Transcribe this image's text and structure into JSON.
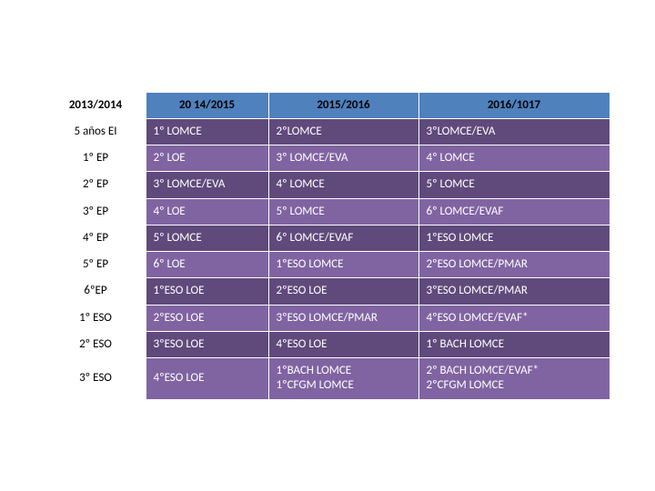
{
  "table": {
    "header_bg": "#4f81bd",
    "row_alt_bg_dark": "#604a7b",
    "row_alt_bg_light": "#8064a2",
    "border_color": "#ffffff",
    "columns": [
      "2013/2014",
      "20 14/2015",
      "2015/2016",
      "2016/1017"
    ],
    "rows": [
      [
        "5 años EI",
        "1º LOMCE",
        "2ºLOMCE",
        "3ºLOMCE/EVA"
      ],
      [
        "1º EP",
        "2º LOE",
        "3º LOMCE/EVA",
        "4º LOMCE"
      ],
      [
        "2º EP",
        "3º LOMCE/EVA",
        "4º LOMCE",
        "5º LOMCE"
      ],
      [
        "3º EP",
        "4º LOE",
        "5º LOMCE",
        "6º LOMCE/EVAF"
      ],
      [
        "4º EP",
        "5º LOMCE",
        "6º LOMCE/EVAF",
        "1ºESO LOMCE"
      ],
      [
        "5º EP",
        "6º LOE",
        "1ºESO LOMCE",
        "2ºESO LOMCE/PMAR"
      ],
      [
        "6ºEP",
        "1ºESO LOE",
        "2ºESO LOE",
        "3ºESO LOMCE/PMAR"
      ],
      [
        "1º ESO",
        "2ºESO LOE",
        "3ºESO LOMCE/PMAR",
        "4ºESO LOMCE/EVAF*"
      ],
      [
        "2º ESO",
        "3ºESO LOE",
        "4ºESO LOE",
        "1º BACH LOMCE"
      ],
      [
        "3º ESO",
        "4ºESO LOE",
        "1ºBACH LOMCE\n1ºCFGM LOMCE",
        "2º BACH LOMCE/EVAF*\n2ºCFGM LOMCE"
      ]
    ]
  }
}
